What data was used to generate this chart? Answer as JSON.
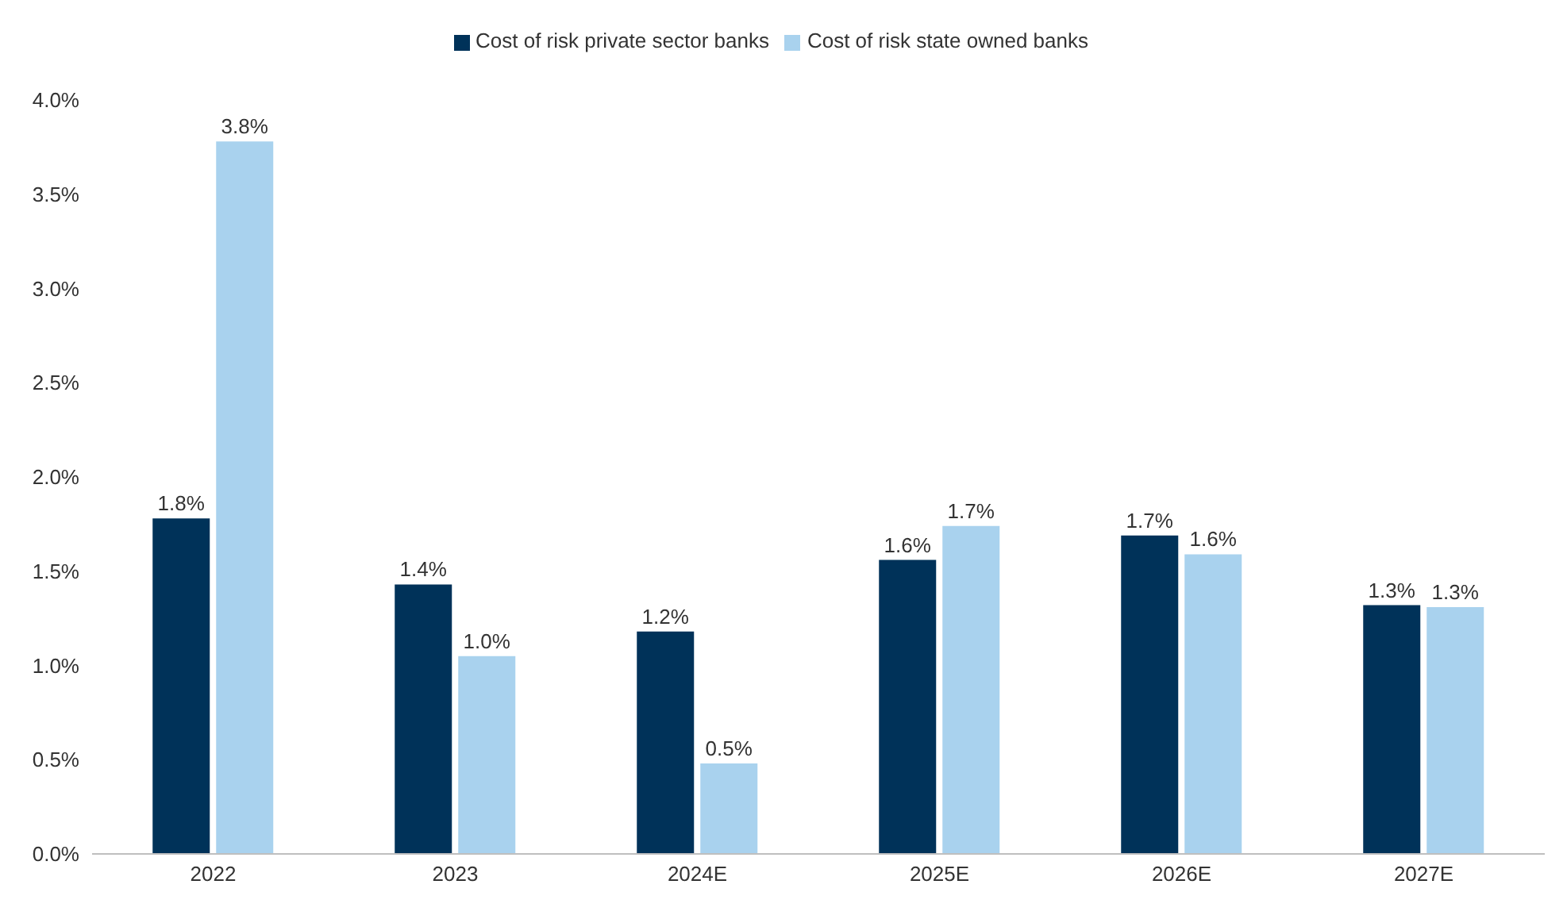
{
  "chart_data": {
    "type": "bar",
    "categories": [
      "2022",
      "2023",
      "2024E",
      "2025E",
      "2026E",
      "2027E"
    ],
    "series": [
      {
        "name": "Cost of risk private sector banks",
        "color": "#003259",
        "values": [
          1.78,
          1.43,
          1.18,
          1.56,
          1.69,
          1.32
        ],
        "value_labels": [
          "1.8%",
          "1.4%",
          "1.2%",
          "1.6%",
          "1.7%",
          "1.3%"
        ]
      },
      {
        "name": "Cost of risk state owned banks",
        "color": "#a9d2ee",
        "values": [
          3.78,
          1.05,
          0.48,
          1.74,
          1.59,
          1.31
        ],
        "value_labels": [
          "3.8%",
          "1.0%",
          "0.5%",
          "1.7%",
          "1.6%",
          "1.3%"
        ]
      }
    ],
    "ylim": [
      0,
      4
    ],
    "yticks": [
      {
        "value": 0,
        "label": "0.0%"
      },
      {
        "value": 0.5,
        "label": "0.5%"
      },
      {
        "value": 1,
        "label": "1.0%"
      },
      {
        "value": 1.5,
        "label": "1.5%"
      },
      {
        "value": 2,
        "label": "2.0%"
      },
      {
        "value": 2.5,
        "label": "2.5%"
      },
      {
        "value": 3,
        "label": "3.0%"
      },
      {
        "value": 3.5,
        "label": "3.5%"
      },
      {
        "value": 4,
        "label": "4.0%"
      }
    ],
    "grid": false,
    "legend": "top"
  }
}
